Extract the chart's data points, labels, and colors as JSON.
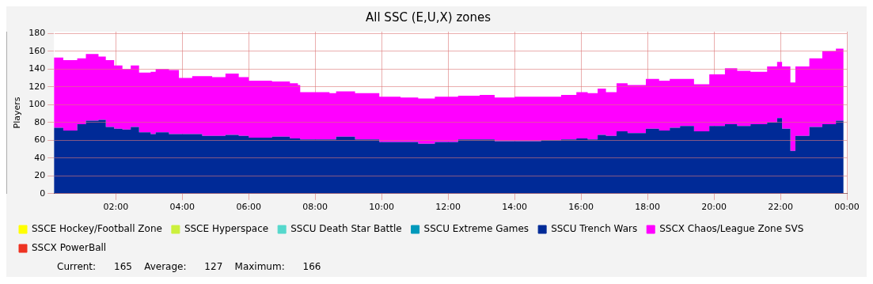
{
  "chart_data": {
    "type": "area",
    "title": "All SSC (E,U,X) zones",
    "ylabel": "Players",
    "x": [
      0.14,
      0.42,
      0.84,
      1.1,
      1.48,
      1.7,
      1.95,
      2.2,
      2.45,
      2.7,
      3.05,
      3.2,
      3.6,
      3.9,
      4.3,
      4.6,
      4.9,
      5.3,
      5.7,
      6.0,
      6.7,
      7.24,
      7.48,
      7.55,
      8.43,
      8.63,
      9.2,
      9.93,
      10.57,
      11.1,
      11.6,
      12.3,
      12.95,
      13.4,
      14.0,
      14.8,
      15.4,
      15.86,
      16.2,
      16.5,
      16.75,
      17.07,
      17.4,
      17.95,
      18.35,
      18.67,
      18.98,
      19.4,
      19.86,
      20.33,
      20.7,
      21.1,
      21.6,
      21.9,
      22.05,
      22.3,
      22.45,
      22.87,
      23.26,
      23.67,
      23.9
    ],
    "stacked": true,
    "series": [
      {
        "name": "SSCE Hockey/Football Zone",
        "color": "#ffff00",
        "values": [
          null,
          null,
          null,
          null,
          null,
          null,
          null,
          null,
          null,
          null,
          null,
          null,
          null,
          null,
          null,
          null,
          null,
          null,
          null,
          null,
          null,
          null,
          null,
          null,
          null,
          null,
          null,
          null,
          null,
          null,
          null,
          null,
          null,
          null,
          null,
          null,
          null,
          null,
          null,
          null,
          null,
          null,
          null,
          null,
          null,
          null,
          null,
          null,
          null,
          null,
          null,
          null,
          null,
          null,
          null,
          null,
          null,
          null,
          null,
          null,
          null
        ]
      },
      {
        "name": "SSCE Hyperspace",
        "color": "#ccf03c",
        "values": [
          null,
          null,
          null,
          null,
          null,
          null,
          null,
          null,
          null,
          null,
          null,
          null,
          null,
          null,
          null,
          null,
          null,
          null,
          null,
          null,
          null,
          null,
          null,
          null,
          null,
          null,
          null,
          null,
          null,
          null,
          null,
          null,
          null,
          null,
          null,
          null,
          null,
          null,
          null,
          null,
          null,
          null,
          null,
          null,
          null,
          null,
          null,
          null,
          null,
          null,
          null,
          null,
          null,
          null,
          null,
          null,
          null,
          null,
          null,
          null,
          null
        ]
      },
      {
        "name": "SSCU Death Star Battle",
        "color": "#55d8cc",
        "values": [
          null,
          null,
          null,
          null,
          null,
          null,
          null,
          null,
          null,
          null,
          null,
          null,
          null,
          null,
          null,
          null,
          null,
          null,
          null,
          null,
          null,
          null,
          null,
          null,
          null,
          null,
          null,
          null,
          null,
          null,
          null,
          null,
          null,
          null,
          null,
          null,
          null,
          null,
          null,
          null,
          null,
          null,
          null,
          null,
          null,
          null,
          null,
          null,
          null,
          null,
          null,
          null,
          null,
          null,
          null,
          null,
          null,
          null,
          null,
          null,
          null
        ]
      },
      {
        "name": "SSCU Extreme Games",
        "color": "#0099bb",
        "values": [
          null,
          null,
          null,
          null,
          null,
          null,
          null,
          null,
          null,
          null,
          null,
          null,
          null,
          null,
          null,
          null,
          null,
          null,
          null,
          null,
          null,
          null,
          null,
          null,
          null,
          null,
          null,
          null,
          null,
          null,
          null,
          null,
          null,
          null,
          null,
          null,
          null,
          null,
          null,
          null,
          null,
          null,
          null,
          null,
          null,
          null,
          null,
          null,
          null,
          null,
          null,
          null,
          null,
          null,
          null,
          null,
          null,
          null,
          null,
          null,
          null
        ]
      },
      {
        "name": "SSCU Trench Wars",
        "color": "#002a97",
        "values": [
          74,
          71,
          78,
          82,
          83,
          75,
          73,
          72,
          75,
          69,
          67,
          69,
          67,
          67,
          67,
          65,
          65,
          66,
          65,
          63,
          64,
          62,
          62,
          61,
          61,
          64,
          61,
          58,
          58,
          56,
          58,
          61,
          61,
          59,
          59,
          60,
          61,
          62,
          61,
          66,
          65,
          70,
          68,
          73,
          71,
          74,
          76,
          70,
          76,
          78,
          76,
          78,
          80,
          85,
          73,
          48,
          65,
          75,
          78,
          82,
          82
        ]
      },
      {
        "name": "SSCX Chaos/League Zone SVS",
        "color": "#ff00ff",
        "values": [
          79,
          79,
          74,
          75,
          71,
          75,
          71,
          68,
          69,
          67,
          70,
          71,
          72,
          63,
          65,
          67,
          66,
          69,
          66,
          64,
          62,
          62,
          60,
          53,
          52,
          51,
          52,
          51,
          50,
          51,
          51,
          49,
          50,
          49,
          50,
          49,
          50,
          52,
          52,
          52,
          49,
          54,
          54,
          56,
          56,
          55,
          53,
          53,
          58,
          63,
          62,
          59,
          63,
          63,
          70,
          77,
          78,
          77,
          82,
          81,
          83
        ]
      },
      {
        "name": "SSCX PowerBall",
        "color": "#ee3322",
        "values": [
          null,
          null,
          null,
          null,
          null,
          null,
          null,
          null,
          null,
          null,
          null,
          null,
          null,
          null,
          null,
          null,
          null,
          null,
          null,
          null,
          null,
          null,
          null,
          null,
          null,
          null,
          null,
          null,
          null,
          null,
          null,
          null,
          null,
          null,
          null,
          null,
          null,
          null,
          null,
          null,
          null,
          null,
          null,
          null,
          null,
          null,
          null,
          null,
          null,
          null,
          null,
          null,
          null,
          null,
          null,
          null,
          null,
          null,
          null,
          null,
          null
        ]
      }
    ],
    "xlim": [
      0.14,
      24
    ],
    "xticks": [
      {
        "value": 2,
        "label": "02:00"
      },
      {
        "value": 4,
        "label": "04:00"
      },
      {
        "value": 6,
        "label": "06:00"
      },
      {
        "value": 8,
        "label": "08:00"
      },
      {
        "value": 10,
        "label": "10:00"
      },
      {
        "value": 12,
        "label": "12:00"
      },
      {
        "value": 14,
        "label": "14:00"
      },
      {
        "value": 16,
        "label": "16:00"
      },
      {
        "value": 18,
        "label": "18:00"
      },
      {
        "value": 20,
        "label": "20:00"
      },
      {
        "value": 22,
        "label": "22:00"
      },
      {
        "value": 24,
        "label": "00:00"
      }
    ],
    "ylim": [
      0,
      182
    ],
    "yticks": [
      0,
      20,
      40,
      60,
      80,
      100,
      120,
      140,
      160,
      180
    ],
    "grid": true,
    "legend": "bottom",
    "annotations": [
      "Current:      165    Average:      127    Maximum:      166"
    ]
  }
}
